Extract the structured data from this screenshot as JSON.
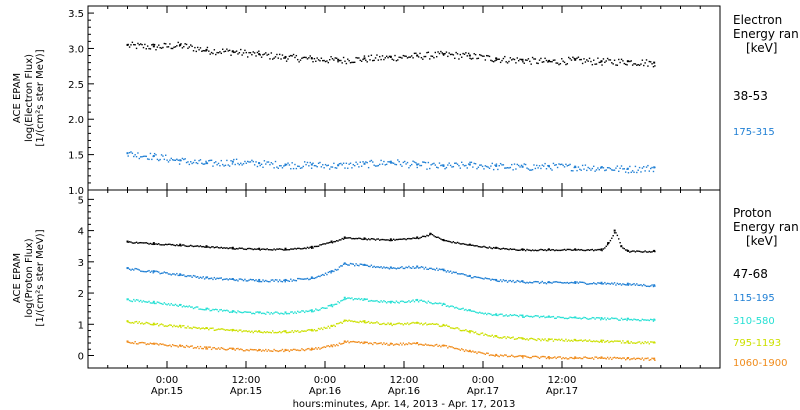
{
  "chart_data": [
    {
      "type": "scatter",
      "panel": "electron",
      "ylabel_lines": [
        "ACE EPAM",
        "log(Electron Flux)",
        "[1/(cm²s ster MeV)]"
      ],
      "ylim": [
        1.0,
        3.6
      ],
      "yticks": [
        "1.0",
        "1.5",
        "2.0",
        "2.5",
        "3.0",
        "3.5"
      ],
      "legend_title_lines": [
        "Electron",
        "Energy ran",
        "[keV]"
      ],
      "series": [
        {
          "name": "38-53",
          "color": "#000000",
          "x": [
            0,
            4,
            8,
            12,
            16,
            20,
            24,
            28,
            32,
            36,
            40,
            44,
            48,
            52,
            56,
            60,
            64,
            68,
            72,
            76,
            80
          ],
          "values": [
            3.05,
            3.03,
            3.05,
            2.98,
            2.96,
            2.92,
            2.88,
            2.86,
            2.84,
            2.86,
            2.88,
            2.9,
            2.92,
            2.9,
            2.86,
            2.84,
            2.82,
            2.84,
            2.82,
            2.82,
            2.8
          ]
        },
        {
          "name": "175-315",
          "color": "#1f7fd4",
          "x": [
            0,
            4,
            8,
            12,
            16,
            20,
            24,
            28,
            32,
            36,
            40,
            44,
            48,
            52,
            56,
            60,
            64,
            68,
            72,
            76,
            80
          ],
          "values": [
            1.52,
            1.48,
            1.42,
            1.38,
            1.4,
            1.38,
            1.36,
            1.36,
            1.35,
            1.37,
            1.4,
            1.36,
            1.34,
            1.36,
            1.34,
            1.33,
            1.34,
            1.33,
            1.32,
            1.3,
            1.32
          ]
        }
      ]
    },
    {
      "type": "scatter",
      "panel": "proton",
      "ylabel_lines": [
        "ACE EPAM",
        "log(Proton Flux)",
        "[1/(cm²s ster MeV)]"
      ],
      "ylim": [
        -0.4,
        5.3
      ],
      "yticks": [
        "0",
        "1",
        "2",
        "3",
        "4",
        "5"
      ],
      "legend_title_lines": [
        "Proton",
        "Energy ran",
        "[keV]"
      ],
      "series": [
        {
          "name": "47-68",
          "color": "#000000",
          "x": [
            0,
            4,
            8,
            12,
            16,
            20,
            24,
            28,
            31,
            33,
            36,
            40,
            44,
            46,
            48,
            52,
            56,
            60,
            64,
            68,
            72,
            73,
            74,
            75,
            76,
            80
          ],
          "values": [
            3.65,
            3.6,
            3.55,
            3.5,
            3.45,
            3.42,
            3.42,
            3.48,
            3.65,
            3.78,
            3.75,
            3.72,
            3.78,
            3.9,
            3.7,
            3.55,
            3.45,
            3.4,
            3.4,
            3.4,
            3.4,
            3.6,
            4.0,
            3.5,
            3.35,
            3.35
          ]
        },
        {
          "name": "115-195",
          "color": "#1f7fd4",
          "x": [
            0,
            4,
            8,
            12,
            16,
            20,
            24,
            28,
            31,
            33,
            36,
            40,
            44,
            48,
            52,
            56,
            60,
            64,
            68,
            72,
            76,
            80
          ],
          "values": [
            2.8,
            2.7,
            2.6,
            2.5,
            2.45,
            2.42,
            2.42,
            2.5,
            2.7,
            2.95,
            2.9,
            2.82,
            2.85,
            2.75,
            2.55,
            2.42,
            2.38,
            2.35,
            2.35,
            2.33,
            2.3,
            2.25
          ]
        },
        {
          "name": "310-580",
          "color": "#27e0d4",
          "x": [
            0,
            4,
            8,
            12,
            16,
            20,
            24,
            28,
            31,
            33,
            36,
            40,
            44,
            48,
            52,
            56,
            60,
            64,
            68,
            72,
            76,
            80
          ],
          "values": [
            1.8,
            1.72,
            1.62,
            1.5,
            1.42,
            1.38,
            1.38,
            1.45,
            1.62,
            1.85,
            1.8,
            1.72,
            1.78,
            1.65,
            1.45,
            1.32,
            1.28,
            1.25,
            1.22,
            1.2,
            1.18,
            1.15
          ]
        },
        {
          "name": "795-1193",
          "color": "#cce000",
          "x": [
            0,
            4,
            8,
            12,
            16,
            20,
            24,
            28,
            31,
            33,
            36,
            40,
            44,
            48,
            52,
            56,
            60,
            64,
            68,
            72,
            76,
            80
          ],
          "values": [
            1.1,
            1.02,
            0.95,
            0.88,
            0.82,
            0.78,
            0.78,
            0.82,
            0.95,
            1.12,
            1.1,
            1.02,
            1.05,
            0.98,
            0.78,
            0.62,
            0.55,
            0.52,
            0.5,
            0.48,
            0.45,
            0.42
          ]
        },
        {
          "name": "1060-1900",
          "color": "#f08c1c",
          "x": [
            0,
            4,
            8,
            12,
            16,
            20,
            24,
            28,
            31,
            33,
            36,
            40,
            44,
            48,
            52,
            56,
            60,
            64,
            68,
            72,
            76,
            80
          ],
          "values": [
            0.45,
            0.38,
            0.32,
            0.26,
            0.22,
            0.18,
            0.18,
            0.22,
            0.32,
            0.45,
            0.42,
            0.38,
            0.4,
            0.32,
            0.15,
            0.02,
            -0.02,
            -0.05,
            -0.06,
            -0.06,
            -0.08,
            -0.1
          ]
        }
      ]
    }
  ],
  "x_axis": {
    "range_hours": [
      -6,
      90
    ],
    "ticks": [
      {
        "hours": 6,
        "lines": [
          "0:00",
          "Apr.15"
        ]
      },
      {
        "hours": 18,
        "lines": [
          "12:00",
          "Apr.15"
        ]
      },
      {
        "hours": 30,
        "lines": [
          "0:00",
          "Apr.16"
        ]
      },
      {
        "hours": 42,
        "lines": [
          "12:00",
          "Apr.16"
        ]
      },
      {
        "hours": 54,
        "lines": [
          "0:00",
          "Apr.17"
        ]
      },
      {
        "hours": 66,
        "lines": [
          "12:00",
          "Apr.17"
        ]
      }
    ],
    "label": "hours:minutes, Apr. 14, 2013 - Apr. 17, 2013"
  }
}
